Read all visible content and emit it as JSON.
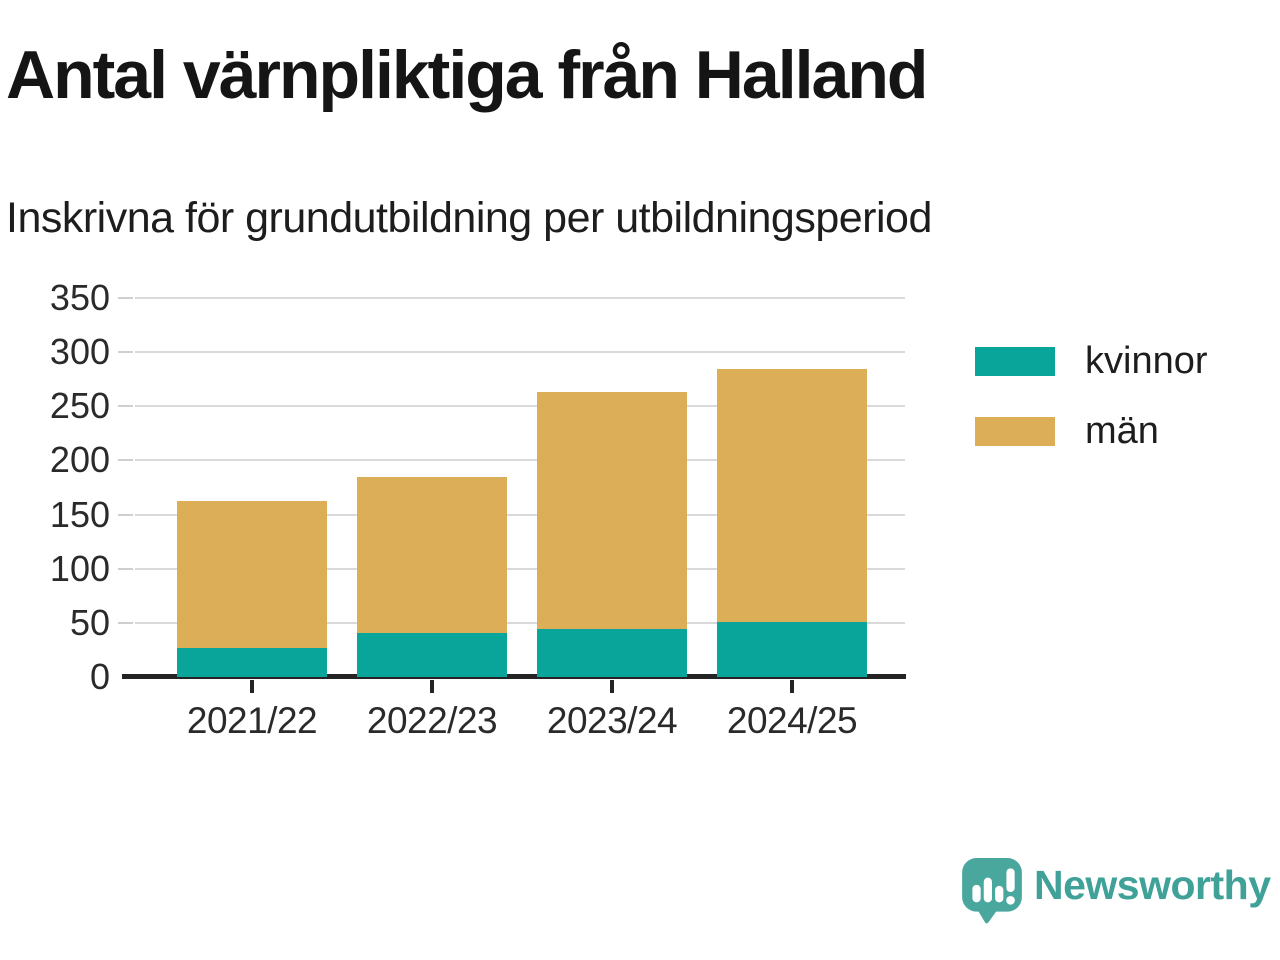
{
  "header": {
    "title": "Antal värnpliktiga från Halland",
    "subtitle": "Inskrivna för grundutbildning per utbildningsperiod"
  },
  "chart_data": {
    "type": "bar",
    "stacked": true,
    "title": "Antal värnpliktiga från Halland",
    "subtitle": "Inskrivna för grundutbildning per utbildningsperiod",
    "categories": [
      "2021/22",
      "2022/23",
      "2023/24",
      "2024/25"
    ],
    "series": [
      {
        "name": "kvinnor",
        "color": "#0aa59a",
        "values": [
          27,
          41,
          44,
          51
        ]
      },
      {
        "name": "män",
        "color": "#dcae58",
        "values": [
          136,
          144,
          219,
          233
        ]
      }
    ],
    "totals": [
      163,
      185,
      263,
      284
    ],
    "xlabel": "",
    "ylabel": "",
    "ylim": [
      0,
      350
    ],
    "yticks": [
      0,
      50,
      100,
      150,
      200,
      250,
      300,
      350
    ],
    "grid": "horizontal",
    "legend_position": "right",
    "colors": {
      "grid": "#d9d9d9",
      "axis": "#242424",
      "tick_text": "#2a2a2a"
    }
  },
  "branding": {
    "name": "Newsworthy",
    "logo_icon": "speech-bubble-bar-chart-icon",
    "logo_color": "#4aa79e",
    "text_color": "#3fa198"
  }
}
